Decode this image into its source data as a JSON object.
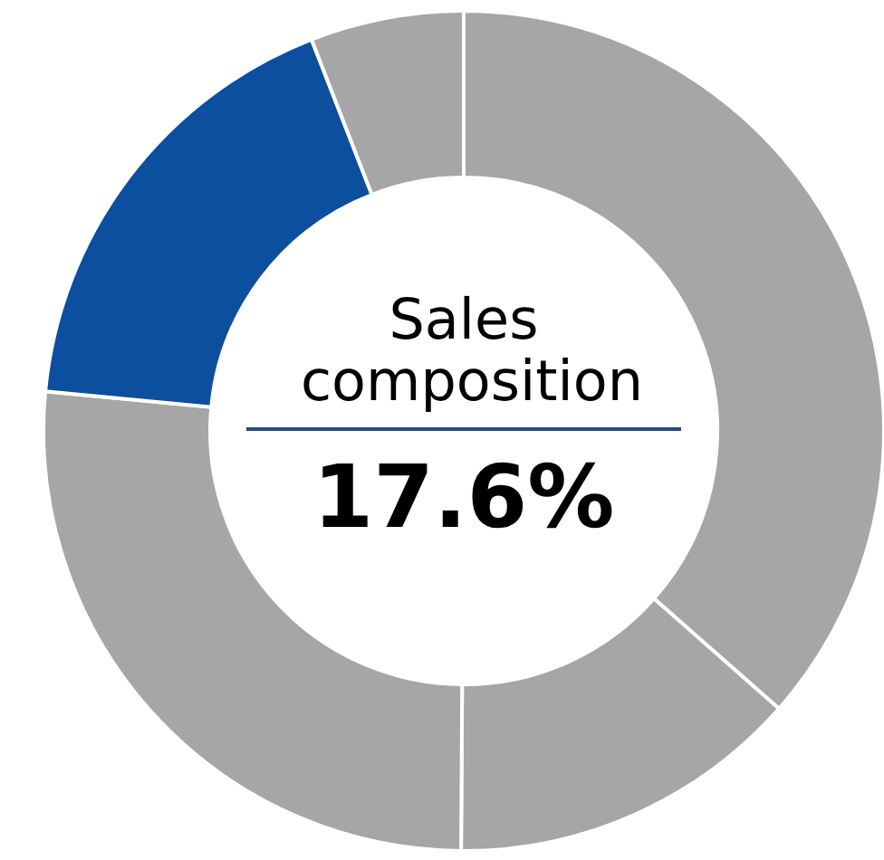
{
  "chart_data": {
    "type": "donut",
    "title": "Sales composition",
    "categories": [
      null,
      null,
      null,
      null,
      null
    ],
    "values": [
      36.5,
      13.6,
      26.4,
      17.6,
      5.9
    ],
    "colors": [
      "#a6a6a6",
      "#a6a6a6",
      "#a6a6a6",
      "#0b4f9e",
      "#a6a6a6"
    ],
    "annotations": [
      "17.6%"
    ]
  }
}
